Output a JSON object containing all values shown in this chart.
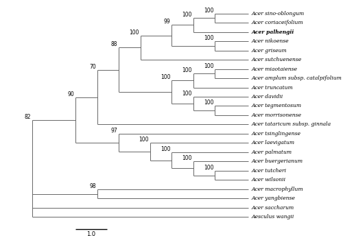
{
  "taxa": [
    "Acer sino-oblongum",
    "Acer coriaceifolium",
    "Acer palhengii",
    "Acer nikoense",
    "Acer griseum",
    "Acer sutchuenense",
    "Acer miaotaiense",
    "Acer amplum subsp. catalpifolium",
    "Acer truncatum",
    "Acer davidii",
    "Acer tegmentosum",
    "Acer morrisonense",
    "Acer tataricum subsp. ginnala",
    "Acer tsinglingense",
    "Acer laevigatum",
    "Acer palmatum",
    "Acer buergerianum",
    "Acer tutcheri",
    "Acer wilsonii",
    "Acer macrophyllum",
    "Acer yangbiense",
    "Acer saccharum",
    "Aesculus wangii"
  ],
  "bold_taxa": [
    "Acer palhengii"
  ],
  "bg_color": "#ffffff",
  "line_color": "#666666",
  "text_color": "#000000",
  "font_size": 5.5,
  "bootstrap_font_size": 5.5,
  "figwidth": 5.0,
  "figheight": 3.44,
  "dpi": 100
}
